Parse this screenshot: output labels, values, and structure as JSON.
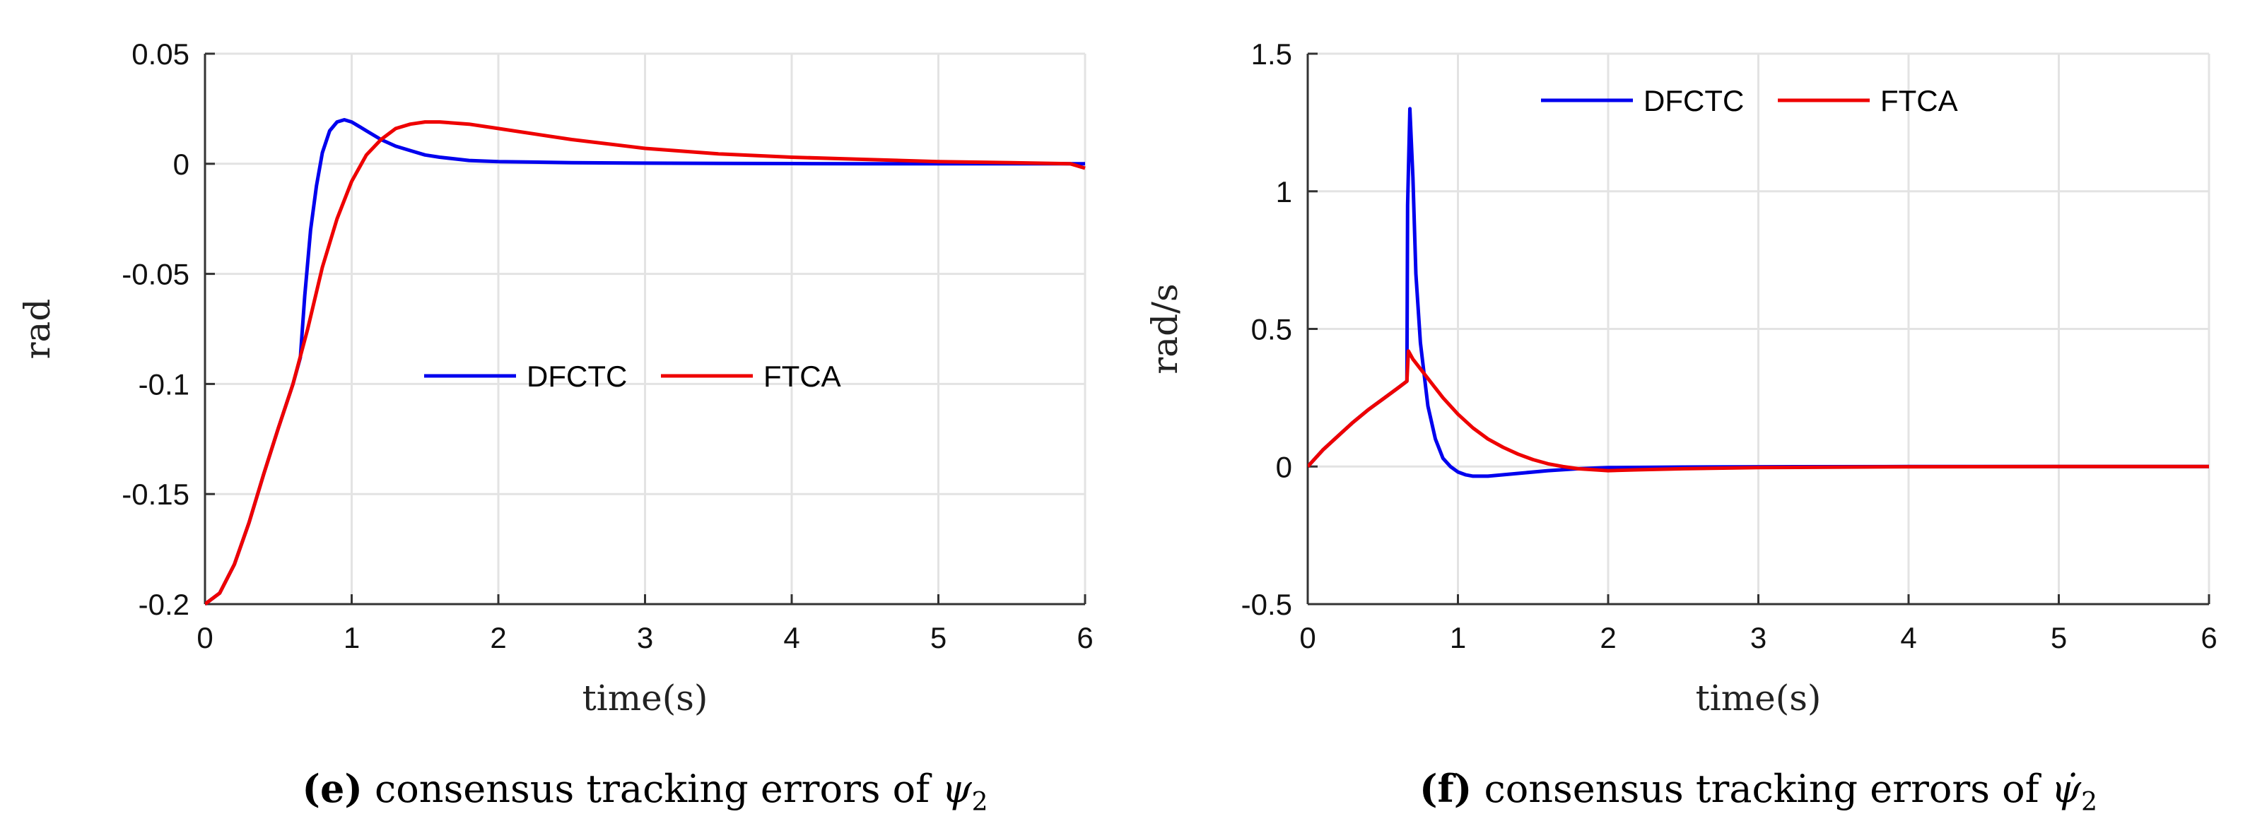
{
  "chart_data": [
    {
      "type": "line",
      "panel_label": "e",
      "caption": "consensus tracking errors of",
      "caption_symbol": "ψ",
      "caption_subscript": "2",
      "xlabel": "time(s)",
      "ylabel": "rad",
      "xlim": [
        0,
        6
      ],
      "ylim": [
        -0.2,
        0.05
      ],
      "xticks": [
        0,
        1,
        2,
        3,
        4,
        5,
        6
      ],
      "xtick_labels": [
        "0",
        "1",
        "2",
        "3",
        "4",
        "5",
        "6"
      ],
      "yticks": [
        -0.2,
        -0.15,
        -0.1,
        -0.05,
        0,
        0.05
      ],
      "ytick_labels": [
        "-0.2",
        "-0.15",
        "-0.1",
        "-0.05",
        "0",
        "0.05"
      ],
      "grid": true,
      "legend_position": "center",
      "series": [
        {
          "name": "DFCTC",
          "color": "#0000ee",
          "x": [
            0,
            0.1,
            0.2,
            0.3,
            0.4,
            0.5,
            0.6,
            0.65,
            0.68,
            0.72,
            0.76,
            0.8,
            0.85,
            0.9,
            0.95,
            1.0,
            1.05,
            1.1,
            1.2,
            1.3,
            1.4,
            1.5,
            1.6,
            1.8,
            2.0,
            2.5,
            3.0,
            3.5,
            4.0,
            4.5,
            5.0,
            5.5,
            6.0
          ],
          "y": [
            -0.2,
            -0.195,
            -0.182,
            -0.163,
            -0.141,
            -0.12,
            -0.1,
            -0.088,
            -0.06,
            -0.03,
            -0.01,
            0.005,
            0.015,
            0.019,
            0.02,
            0.019,
            0.017,
            0.015,
            0.011,
            0.008,
            0.006,
            0.004,
            0.003,
            0.0015,
            0.001,
            0.0005,
            0.0003,
            0.0002,
            0.0001,
            0,
            0,
            0,
            0
          ]
        },
        {
          "name": "FTCA",
          "color": "#ee0000",
          "x": [
            0,
            0.1,
            0.2,
            0.3,
            0.4,
            0.5,
            0.6,
            0.7,
            0.8,
            0.9,
            1.0,
            1.1,
            1.2,
            1.3,
            1.4,
            1.5,
            1.6,
            1.8,
            2.0,
            2.5,
            3.0,
            3.5,
            4.0,
            4.5,
            5.0,
            5.5,
            5.9,
            6.0
          ],
          "y": [
            -0.2,
            -0.195,
            -0.182,
            -0.163,
            -0.141,
            -0.12,
            -0.1,
            -0.075,
            -0.047,
            -0.025,
            -0.008,
            0.004,
            0.011,
            0.016,
            0.018,
            0.019,
            0.019,
            0.018,
            0.016,
            0.011,
            0.007,
            0.0045,
            0.003,
            0.002,
            0.001,
            0.0005,
            0,
            -0.002
          ]
        }
      ]
    },
    {
      "type": "line",
      "panel_label": "f",
      "caption": "consensus tracking errors of",
      "caption_symbol": "ψ̇",
      "caption_subscript": "2",
      "xlabel": "time(s)",
      "ylabel": "rad/s",
      "xlim": [
        0,
        6
      ],
      "ylim": [
        -0.5,
        1.5
      ],
      "xticks": [
        0,
        1,
        2,
        3,
        4,
        5,
        6
      ],
      "xtick_labels": [
        "0",
        "1",
        "2",
        "3",
        "4",
        "5",
        "6"
      ],
      "yticks": [
        -0.5,
        0,
        0.5,
        1,
        1.5
      ],
      "ytick_labels": [
        "-0.5",
        "0",
        "0.5",
        "1",
        "1.5"
      ],
      "grid": true,
      "legend_position": "top",
      "series": [
        {
          "name": "DFCTC",
          "color": "#0000ee",
          "x": [
            0,
            0.1,
            0.2,
            0.3,
            0.4,
            0.5,
            0.6,
            0.66,
            0.665,
            0.68,
            0.7,
            0.72,
            0.75,
            0.8,
            0.85,
            0.9,
            0.95,
            1.0,
            1.05,
            1.1,
            1.2,
            1.4,
            1.6,
            1.8,
            2.0,
            2.5,
            3.0,
            4.0,
            5.0,
            6.0
          ],
          "y": [
            0,
            0.06,
            0.11,
            0.16,
            0.205,
            0.245,
            0.285,
            0.31,
            0.95,
            1.3,
            1.05,
            0.7,
            0.45,
            0.22,
            0.1,
            0.03,
            0.0,
            -0.02,
            -0.03,
            -0.035,
            -0.035,
            -0.025,
            -0.015,
            -0.008,
            -0.004,
            -0.002,
            -0.001,
            0,
            0,
            0
          ]
        },
        {
          "name": "FTCA",
          "color": "#ee0000",
          "x": [
            0,
            0.1,
            0.2,
            0.3,
            0.4,
            0.5,
            0.6,
            0.66,
            0.67,
            0.7,
            0.8,
            0.9,
            1.0,
            1.1,
            1.2,
            1.3,
            1.4,
            1.5,
            1.6,
            1.7,
            1.8,
            2.0,
            2.2,
            2.5,
            3.0,
            4.0,
            5.0,
            6.0
          ],
          "y": [
            0,
            0.06,
            0.11,
            0.16,
            0.205,
            0.245,
            0.285,
            0.31,
            0.42,
            0.39,
            0.32,
            0.25,
            0.19,
            0.14,
            0.1,
            0.07,
            0.045,
            0.025,
            0.01,
            0.0,
            -0.008,
            -0.015,
            -0.012,
            -0.008,
            -0.004,
            -0.001,
            0,
            0
          ]
        }
      ]
    }
  ]
}
